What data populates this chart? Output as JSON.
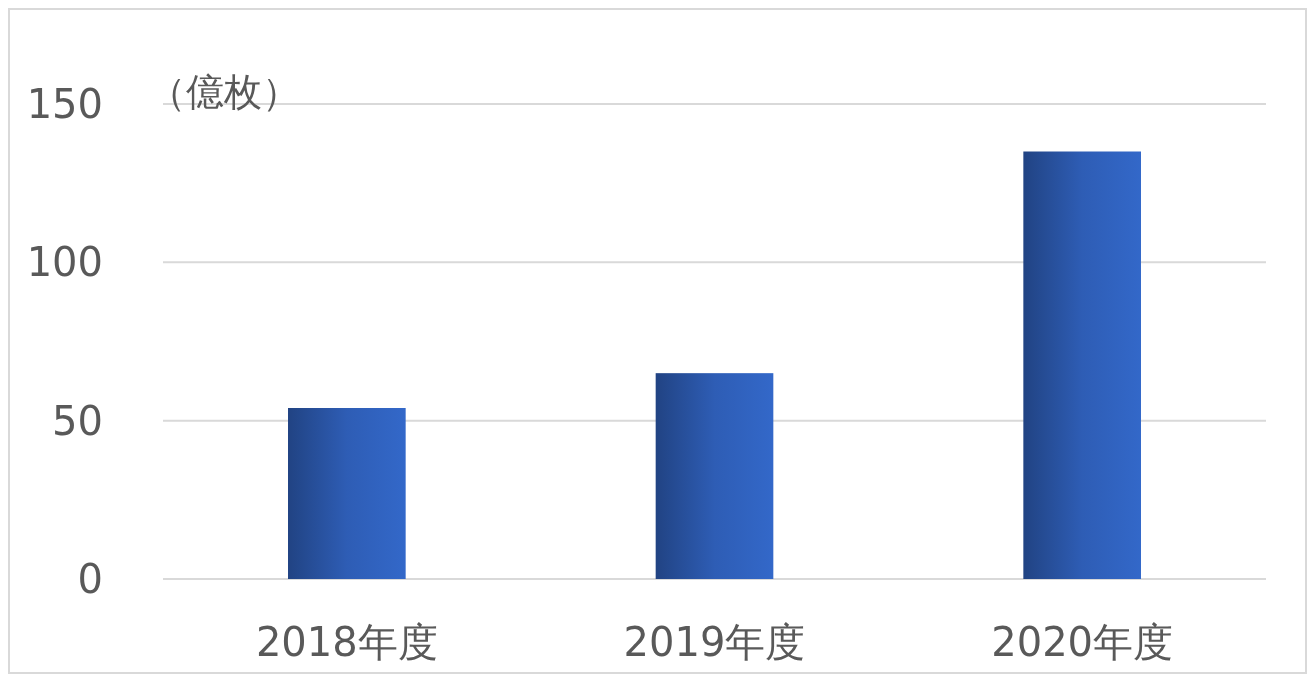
{
  "chart_data": {
    "type": "bar",
    "ylabel": "（億枚）",
    "categories": [
      "2018年度",
      "2019年度",
      "2020年度"
    ],
    "values": [
      54,
      65,
      135
    ],
    "color": "#2e5db5",
    "ylim": [
      0,
      150
    ],
    "yticks": [
      0,
      50,
      100,
      150
    ],
    "grid": "y"
  }
}
